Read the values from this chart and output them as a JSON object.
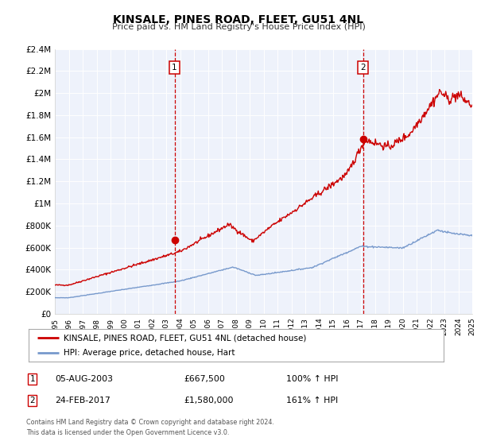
{
  "title": "KINSALE, PINES ROAD, FLEET, GU51 4NL",
  "subtitle": "Price paid vs. HM Land Registry's House Price Index (HPI)",
  "legend_line1": "KINSALE, PINES ROAD, FLEET, GU51 4NL (detached house)",
  "legend_line2": "HPI: Average price, detached house, Hart",
  "red_color": "#cc0000",
  "blue_color": "#7799cc",
  "sale1_date": "05-AUG-2003",
  "sale1_price": "£667,500",
  "sale1_pct": "100% ↑ HPI",
  "sale2_date": "24-FEB-2017",
  "sale2_price": "£1,580,000",
  "sale2_pct": "161% ↑ HPI",
  "footnote1": "Contains HM Land Registry data © Crown copyright and database right 2024.",
  "footnote2": "This data is licensed under the Open Government Licence v3.0.",
  "xlim": [
    1995,
    2025
  ],
  "ylim": [
    0,
    2400000
  ],
  "yticks": [
    0,
    200000,
    400000,
    600000,
    800000,
    1000000,
    1200000,
    1400000,
    1600000,
    1800000,
    2000000,
    2200000,
    2400000
  ],
  "ytick_labels": [
    "£0",
    "£200K",
    "£400K",
    "£600K",
    "£800K",
    "£1M",
    "£1.2M",
    "£1.4M",
    "£1.6M",
    "£1.8M",
    "£2M",
    "£2.2M",
    "£2.4M"
  ],
  "vline1_x": 2003.6,
  "vline2_x": 2017.15,
  "dot1_x": 2003.6,
  "dot1_y": 667500,
  "dot2_x": 2017.15,
  "dot2_y": 1580000,
  "background_color": "#ffffff",
  "plot_bg_color": "#eef2fb"
}
